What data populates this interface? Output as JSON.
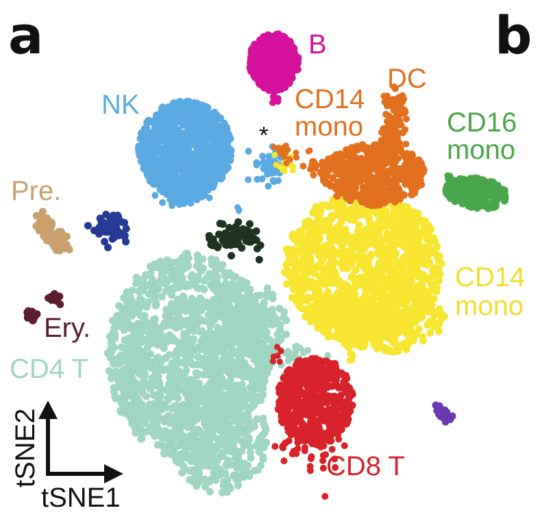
{
  "panels": {
    "left": "a",
    "right": "b"
  },
  "chart_data": {
    "type": "scatter",
    "xlabel": "tSNE1",
    "ylabel": "tSNE2",
    "grid": false,
    "legend": "none",
    "clusters": [
      {
        "name": "B",
        "color": "#d4129b",
        "label_lines": [
          "B"
        ]
      },
      {
        "name": "DC",
        "color": "#e3701f",
        "label_lines": [
          "DC"
        ]
      },
      {
        "name": "CD14 mono (top)",
        "color": "#e3701f",
        "label_lines": [
          "CD14",
          "mono"
        ]
      },
      {
        "name": "NK",
        "color": "#5aa9e0",
        "label_lines": [
          "NK"
        ]
      },
      {
        "name": "CD16 mono",
        "color": "#4aa64a",
        "label_lines": [
          "CD16",
          "mono"
        ]
      },
      {
        "name": "Pre.",
        "color": "#c9a06e",
        "label_lines": [
          "Pre."
        ]
      },
      {
        "name": "CD14 mono",
        "color": "#f7e531",
        "label_lines": [
          "CD14",
          "mono"
        ]
      },
      {
        "name": "Ery.",
        "color": "#5a1e2e",
        "label_lines": [
          "Ery."
        ]
      },
      {
        "name": "CD4 T",
        "color": "#9fd6c1",
        "label_lines": [
          "CD4 T"
        ]
      },
      {
        "name": "CD8 T",
        "color": "#d8232a",
        "label_lines": [
          "CD8 T"
        ]
      },
      {
        "name": "unlabeled-navy",
        "color": "#243a94",
        "label_lines": []
      },
      {
        "name": "unlabeled-darkgreen",
        "color": "#1e3320",
        "label_lines": []
      },
      {
        "name": "unlabeled-purple",
        "color": "#6a3ab0",
        "label_lines": []
      }
    ],
    "annotations": [
      "*"
    ]
  }
}
